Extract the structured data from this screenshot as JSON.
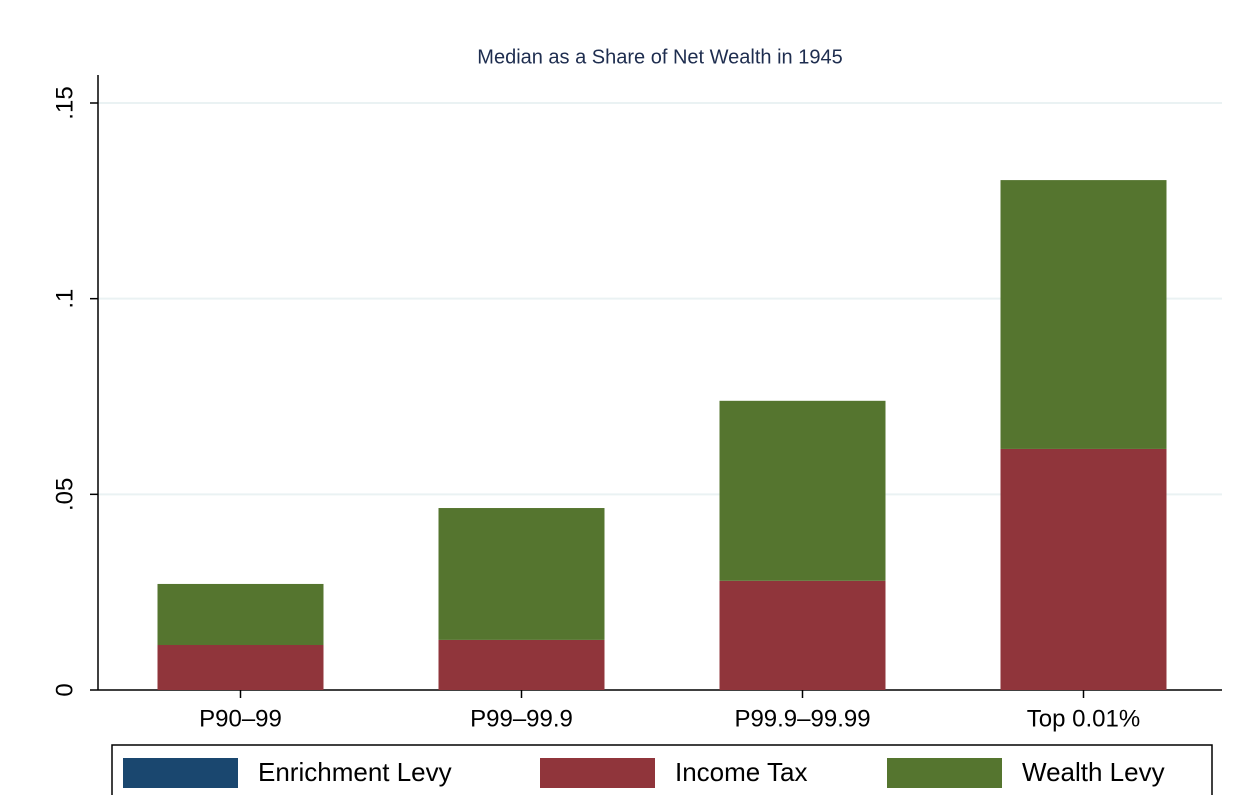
{
  "chart_data": {
    "type": "stacked_bar",
    "title": "Median as a Share of Net Wealth in 1945",
    "categories": [
      "P90–99",
      "P99–99.9",
      "P99.9–99.99",
      "Top 0.01%"
    ],
    "series": [
      {
        "name": "Enrichment Levy",
        "color": "#1a476f",
        "values": [
          0,
          0,
          0,
          0
        ]
      },
      {
        "name": "Income Tax",
        "color": "#90353b",
        "values": [
          0.0115,
          0.0128,
          0.0279,
          0.0616
        ]
      },
      {
        "name": "Wealth Levy",
        "color": "#55752f",
        "values": [
          0.0156,
          0.0337,
          0.046,
          0.0687
        ]
      }
    ],
    "ylim": [
      0,
      0.15
    ],
    "yticks": [
      0,
      {
        "value": 0.05,
        "label": ".05"
      },
      {
        "value": 0.1,
        "label": ".1"
      },
      {
        "value": 0.15,
        "label": ".15"
      }
    ],
    "grid": true,
    "legend": "bottom"
  }
}
